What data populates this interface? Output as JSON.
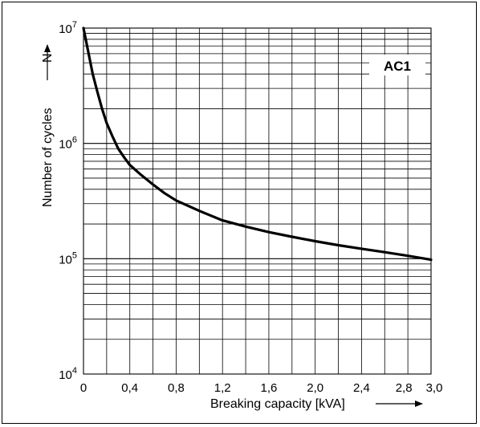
{
  "chart_data": {
    "type": "line",
    "title": "",
    "xlabel": "Breaking capacity [kVA]",
    "ylabel": "Number of cycles",
    "ylabel_symbol": "N",
    "annotation": "AC1",
    "y_scale": "log",
    "xlim": [
      0,
      3.0
    ],
    "ylim": [
      10000,
      10000000
    ],
    "grid": true,
    "x_ticks": [
      0,
      0.4,
      0.8,
      1.2,
      1.6,
      2.0,
      2.4,
      2.8,
      3.0
    ],
    "x_tick_labels": [
      "0",
      "0,4",
      "0,8",
      "1,2",
      "1,6",
      "2,0",
      "2,4",
      "2,8",
      "3,0"
    ],
    "y_ticks": [
      {
        "base": "10",
        "exp": "4",
        "value": 10000
      },
      {
        "base": "10",
        "exp": "5",
        "value": 100000
      },
      {
        "base": "10",
        "exp": "6",
        "value": 1000000
      },
      {
        "base": "10",
        "exp": "7",
        "value": 10000000
      }
    ],
    "series": [
      {
        "x": [
          0.0,
          0.04,
          0.08,
          0.12,
          0.16,
          0.2,
          0.25,
          0.3,
          0.35,
          0.4,
          0.5,
          0.6,
          0.7,
          0.8,
          1.0,
          1.2,
          1.4,
          1.6,
          1.8,
          2.0,
          2.2,
          2.4,
          2.6,
          2.8,
          3.0
        ],
        "y": [
          10000000,
          6300000,
          4000000,
          2800000,
          2000000,
          1500000,
          1150000,
          900000,
          760000,
          650000,
          530000,
          440000,
          370000,
          320000,
          260000,
          215000,
          190000,
          170000,
          155000,
          142000,
          131000,
          122000,
          114000,
          106000,
          98000
        ]
      }
    ]
  }
}
